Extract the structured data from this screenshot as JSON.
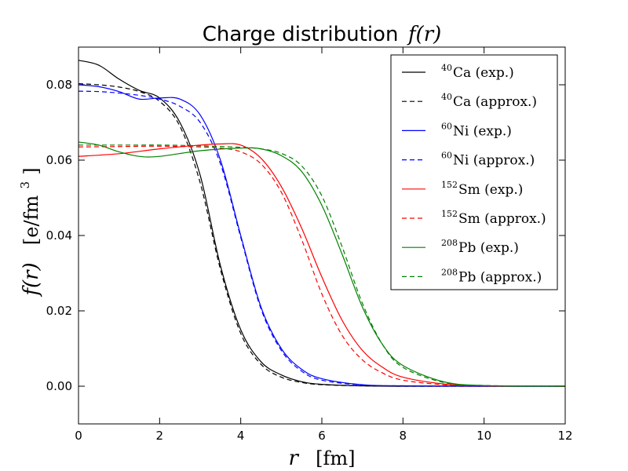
{
  "chart_data": {
    "type": "line",
    "title": "Charge distribution",
    "title_math": "f(r)",
    "xlabel": "r",
    "xlabel_unit": "[fm]",
    "ylabel": "f(r)",
    "ylabel_unit": "[e/fm",
    "ylabel_unit_exp": "3",
    "ylabel_unit_close": "]",
    "xlim": [
      0,
      12
    ],
    "ylim": [
      -0.01,
      0.09
    ],
    "xticks": [
      0,
      2,
      4,
      6,
      8,
      10,
      12
    ],
    "xtick_labels": [
      "0",
      "2",
      "4",
      "6",
      "8",
      "10",
      "12"
    ],
    "yticks": [
      0.0,
      0.02,
      0.04,
      0.06,
      0.08
    ],
    "ytick_labels": [
      "0.00",
      "0.02",
      "0.04",
      "0.06",
      "0.08"
    ],
    "grid": false,
    "legend_position": "top-right",
    "series": [
      {
        "name": "Ca (exp.)",
        "isotope_mass": "40",
        "color": "#000000",
        "dash": "solid",
        "x": [
          0,
          0.5,
          1.0,
          1.5,
          2.0,
          2.5,
          3.0,
          3.5,
          4.0,
          4.5,
          5.0,
          5.5,
          6.0,
          7.0,
          8.0,
          10.0,
          12.0
        ],
        "y": [
          0.0865,
          0.0852,
          0.0815,
          0.0785,
          0.0765,
          0.07,
          0.056,
          0.032,
          0.015,
          0.0065,
          0.003,
          0.0012,
          0.0005,
          0.0001,
          0.0,
          0.0,
          0.0
        ]
      },
      {
        "name": "Ca (approx.)",
        "isotope_mass": "40",
        "color": "#000000",
        "dash": "dashed",
        "x": [
          0,
          0.5,
          1.0,
          1.5,
          2.0,
          2.5,
          3.0,
          3.5,
          4.0,
          4.5,
          5.0,
          5.5,
          6.0,
          7.0,
          8.0,
          10.0,
          12.0
        ],
        "y": [
          0.0803,
          0.08,
          0.0794,
          0.0782,
          0.0756,
          0.069,
          0.054,
          0.031,
          0.014,
          0.0058,
          0.0024,
          0.001,
          0.0004,
          0.0001,
          0.0,
          0.0,
          0.0
        ]
      },
      {
        "name": "Ni (exp.)",
        "isotope_mass": "60",
        "color": "#0000ff",
        "dash": "solid",
        "x": [
          0,
          0.5,
          1.0,
          1.5,
          2.0,
          2.5,
          3.0,
          3.5,
          4.0,
          4.5,
          5.0,
          5.5,
          6.0,
          7.0,
          8.0,
          10.0,
          12.0
        ],
        "y": [
          0.08,
          0.0795,
          0.0782,
          0.0762,
          0.0765,
          0.0762,
          0.072,
          0.06,
          0.04,
          0.021,
          0.01,
          0.0045,
          0.002,
          0.0004,
          0.0001,
          0.0,
          0.0
        ]
      },
      {
        "name": "Ni (approx.)",
        "isotope_mass": "60",
        "color": "#0000ff",
        "dash": "dashed",
        "x": [
          0,
          0.5,
          1.0,
          1.5,
          2.0,
          2.5,
          3.0,
          3.5,
          4.0,
          4.5,
          5.0,
          5.5,
          6.0,
          7.0,
          8.0,
          10.0,
          12.0
        ],
        "y": [
          0.0783,
          0.0782,
          0.0778,
          0.0772,
          0.0762,
          0.0743,
          0.07,
          0.059,
          0.0395,
          0.0205,
          0.0095,
          0.004,
          0.0016,
          0.0003,
          0.0001,
          0.0,
          0.0
        ]
      },
      {
        "name": "Sm (exp.)",
        "isotope_mass": "152",
        "color": "#ff0000",
        "dash": "solid",
        "x": [
          0,
          1.0,
          2.0,
          3.0,
          3.5,
          4.0,
          4.5,
          5.0,
          5.5,
          6.0,
          6.5,
          7.0,
          7.5,
          8.0,
          9.0,
          10.0,
          12.0
        ],
        "y": [
          0.061,
          0.0617,
          0.063,
          0.064,
          0.0643,
          0.064,
          0.0605,
          0.053,
          0.042,
          0.029,
          0.0175,
          0.0095,
          0.005,
          0.0024,
          0.0006,
          0.0001,
          0.0
        ]
      },
      {
        "name": "Sm (approx.)",
        "isotope_mass": "152",
        "color": "#ff0000",
        "dash": "dashed",
        "x": [
          0,
          1.0,
          2.0,
          3.0,
          3.5,
          4.0,
          4.5,
          5.0,
          5.5,
          6.0,
          6.5,
          7.0,
          7.5,
          8.0,
          9.0,
          10.0,
          12.0
        ],
        "y": [
          0.0635,
          0.0636,
          0.0637,
          0.0635,
          0.0632,
          0.0622,
          0.059,
          0.0515,
          0.039,
          0.0245,
          0.0135,
          0.007,
          0.0035,
          0.0016,
          0.0004,
          0.0001,
          0.0
        ]
      },
      {
        "name": "Pb (exp.)",
        "isotope_mass": "208",
        "color": "#008000",
        "dash": "solid",
        "x": [
          0,
          0.5,
          1.0,
          1.5,
          2.0,
          3.0,
          4.0,
          4.5,
          5.0,
          5.5,
          6.0,
          6.5,
          7.0,
          7.5,
          8.0,
          9.0,
          10.0,
          12.0
        ],
        "y": [
          0.0648,
          0.064,
          0.0622,
          0.061,
          0.061,
          0.0625,
          0.0632,
          0.063,
          0.0612,
          0.057,
          0.048,
          0.035,
          0.021,
          0.011,
          0.0055,
          0.0012,
          0.0002,
          0.0
        ]
      },
      {
        "name": "Pb (approx.)",
        "isotope_mass": "208",
        "color": "#008000",
        "dash": "dashed",
        "x": [
          0,
          0.5,
          1.0,
          1.5,
          2.0,
          3.0,
          4.0,
          4.5,
          5.0,
          5.5,
          6.0,
          6.5,
          7.0,
          7.5,
          8.0,
          9.0,
          10.0,
          12.0
        ],
        "y": [
          0.064,
          0.064,
          0.064,
          0.064,
          0.064,
          0.0638,
          0.0634,
          0.063,
          0.0618,
          0.0585,
          0.0505,
          0.037,
          0.022,
          0.011,
          0.005,
          0.001,
          0.0002,
          0.0
        ]
      }
    ]
  }
}
